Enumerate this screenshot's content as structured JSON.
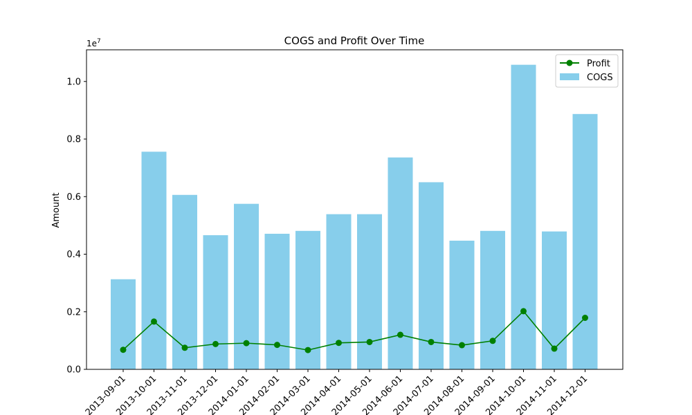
{
  "chart_data": {
    "type": "bar",
    "title": "COGS and Profit Over Time",
    "xlabel": "",
    "ylabel": "Amount",
    "y_offset_label": "1e7",
    "ylim": [
      0,
      11100000
    ],
    "yticks": [
      0,
      2000000,
      4000000,
      6000000,
      8000000,
      10000000
    ],
    "ytick_labels": [
      "0.0",
      "0.2",
      "0.4",
      "0.6",
      "0.8",
      "1.0"
    ],
    "grid": false,
    "legend_position": "top-right",
    "categories": [
      "2013-09-01",
      "2013-10-01",
      "2013-11-01",
      "2013-12-01",
      "2014-01-01",
      "2014-02-01",
      "2014-03-01",
      "2014-04-01",
      "2014-05-01",
      "2014-06-01",
      "2014-07-01",
      "2014-08-01",
      "2014-09-01",
      "2014-10-01",
      "2014-11-01",
      "2014-12-01"
    ],
    "series": [
      {
        "name": "COGS",
        "type": "bar",
        "color": "#87ceeb",
        "values": [
          3130000,
          7560000,
          6060000,
          4660000,
          5750000,
          4710000,
          4810000,
          5390000,
          5390000,
          7360000,
          6500000,
          4470000,
          4810000,
          10580000,
          4790000,
          8870000
        ]
      },
      {
        "name": "Profit",
        "type": "line",
        "color": "#008000",
        "marker": "circle",
        "values": [
          680000,
          1660000,
          750000,
          880000,
          910000,
          850000,
          670000,
          920000,
          950000,
          1200000,
          950000,
          840000,
          990000,
          2020000,
          720000,
          1790000
        ]
      }
    ]
  }
}
